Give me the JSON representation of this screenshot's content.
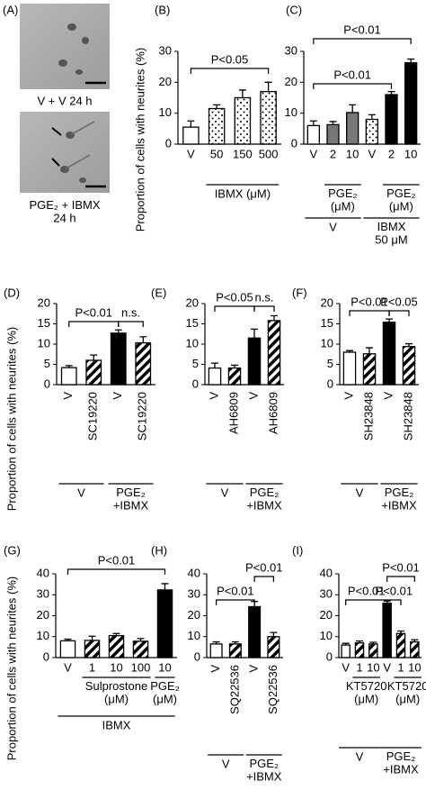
{
  "panel_a": {
    "label": "(A)",
    "captions": [
      "V + V  24 h",
      "PGE₂ + IBMX\n24 h"
    ]
  },
  "chart_data": [
    {
      "type": "bar",
      "label": "(B)",
      "ylabel": "Proportion of cells with neurites (%)",
      "categories": [
        "V",
        "50",
        "150",
        "500"
      ],
      "values": [
        5.5,
        11.5,
        15,
        17
      ],
      "errors": [
        2,
        1.2,
        2.5,
        3
      ],
      "bar_styles": [
        "open",
        "dotted",
        "dotted",
        "dotted"
      ],
      "ylim": [
        0,
        30
      ],
      "yticks": [
        0,
        10,
        20,
        30
      ],
      "group_labels": [
        "IBMX (μM)"
      ],
      "annotations": [
        "P<0.05"
      ]
    },
    {
      "type": "bar",
      "label": "(C)",
      "categories": [
        "V",
        "2",
        "10",
        "V",
        "2",
        "10"
      ],
      "values": [
        6,
        6.3,
        10.2,
        8,
        16,
        26.3
      ],
      "errors": [
        1.5,
        1,
        2.5,
        1.5,
        1,
        1.2
      ],
      "bar_styles": [
        "open",
        "gray",
        "gray",
        "dotted",
        "solid",
        "solid"
      ],
      "ylim": [
        0,
        30
      ],
      "yticks": [
        0,
        10,
        20,
        30
      ],
      "group_labels": [
        "PGE₂\n(μM)",
        "PGE₂\n(μM)",
        "V",
        "IBMX\n50 μM"
      ],
      "annotations": [
        "P<0.01",
        "P<0.01"
      ]
    },
    {
      "type": "bar",
      "label": "(D)",
      "ylabel": "Proportion of cells with neurites (%)",
      "categories": [
        "V",
        "SC19220",
        "V",
        "SC19220"
      ],
      "values": [
        4.2,
        6,
        12.7,
        10.3
      ],
      "errors": [
        0.5,
        1.3,
        0.8,
        1.5
      ],
      "bar_styles": [
        "open",
        "hatched",
        "solid",
        "hatched"
      ],
      "ylim": [
        0,
        20
      ],
      "yticks": [
        0,
        5,
        10,
        15,
        20
      ],
      "group_labels": [
        "V",
        "PGE₂\n+IBMX"
      ],
      "annotations": [
        "P<0.01",
        "n.s."
      ]
    },
    {
      "type": "bar",
      "label": "(E)",
      "categories": [
        "V",
        "AH6809",
        "V",
        "AH6809"
      ],
      "values": [
        4.1,
        4.1,
        11.5,
        15.8
      ],
      "errors": [
        1.2,
        0.7,
        2.2,
        1.2
      ],
      "bar_styles": [
        "open",
        "hatched",
        "solid",
        "hatched"
      ],
      "ylim": [
        0,
        20
      ],
      "yticks": [
        0,
        5,
        10,
        15,
        20
      ],
      "group_labels": [
        "V",
        "PGE₂\n+IBMX"
      ],
      "annotations": [
        "P<0.05",
        "n.s."
      ]
    },
    {
      "type": "bar",
      "label": "(F)",
      "categories": [
        "V",
        "SH23848",
        "V",
        "SH23848"
      ],
      "values": [
        8,
        7.6,
        15.4,
        9.4
      ],
      "errors": [
        0.4,
        1.5,
        0.8,
        0.7
      ],
      "bar_styles": [
        "open",
        "hatched",
        "solid",
        "hatched"
      ],
      "ylim": [
        0,
        20
      ],
      "yticks": [
        0,
        5,
        10,
        15,
        20
      ],
      "group_labels": [
        "V",
        "PGE₂\n+IBMX"
      ],
      "annotations": [
        "P<0.01",
        "P<0.05"
      ]
    },
    {
      "type": "bar",
      "label": "(G)",
      "ylabel": "Proportion of cells with neurites (%)",
      "categories": [
        "V",
        "1",
        "10",
        "100",
        "10"
      ],
      "values": [
        8,
        8.2,
        10.5,
        7.8,
        32.3
      ],
      "errors": [
        0.8,
        2,
        1,
        1.3,
        3
      ],
      "bar_styles": [
        "open",
        "hatched",
        "hatched",
        "hatched",
        "solid"
      ],
      "ylim": [
        0,
        40
      ],
      "yticks": [
        0,
        10,
        20,
        30,
        40
      ],
      "group_labels": [
        "Sulprostone\n(μM)",
        "PGE₂\n(μM)",
        "IBMX"
      ],
      "annotations": [
        "P<0.01"
      ]
    },
    {
      "type": "bar",
      "label": "(H)",
      "categories": [
        "V",
        "SQ22536",
        "V",
        "SQ22536"
      ],
      "values": [
        6.5,
        6.5,
        24.3,
        10
      ],
      "errors": [
        1,
        1,
        2.5,
        2
      ],
      "bar_styles": [
        "open",
        "hatched",
        "solid",
        "hatched"
      ],
      "ylim": [
        0,
        40
      ],
      "yticks": [
        0,
        10,
        20,
        30,
        40
      ],
      "group_labels": [
        "V",
        "PGE₂\n+IBMX"
      ],
      "annotations": [
        "P<0.01",
        "P<0.01"
      ]
    },
    {
      "type": "bar",
      "label": "(I)",
      "categories": [
        "V",
        "1",
        "10",
        "V",
        "1",
        "10"
      ],
      "values": [
        6,
        7,
        6.5,
        26,
        11.5,
        7.5
      ],
      "errors": [
        0.8,
        0.9,
        0.8,
        1,
        1.2,
        1
      ],
      "bar_styles": [
        "open",
        "hatched",
        "hatched",
        "solid",
        "hatched",
        "hatched"
      ],
      "ylim": [
        0,
        40
      ],
      "yticks": [
        0,
        10,
        20,
        30,
        40
      ],
      "group_labels": [
        "KT5720\n(μM)",
        "KT5720\n(μM)",
        "V",
        "PGE₂\n+IBMX"
      ],
      "annotations": [
        "P<0.01",
        "P<0.01",
        "P<0.01"
      ]
    }
  ]
}
